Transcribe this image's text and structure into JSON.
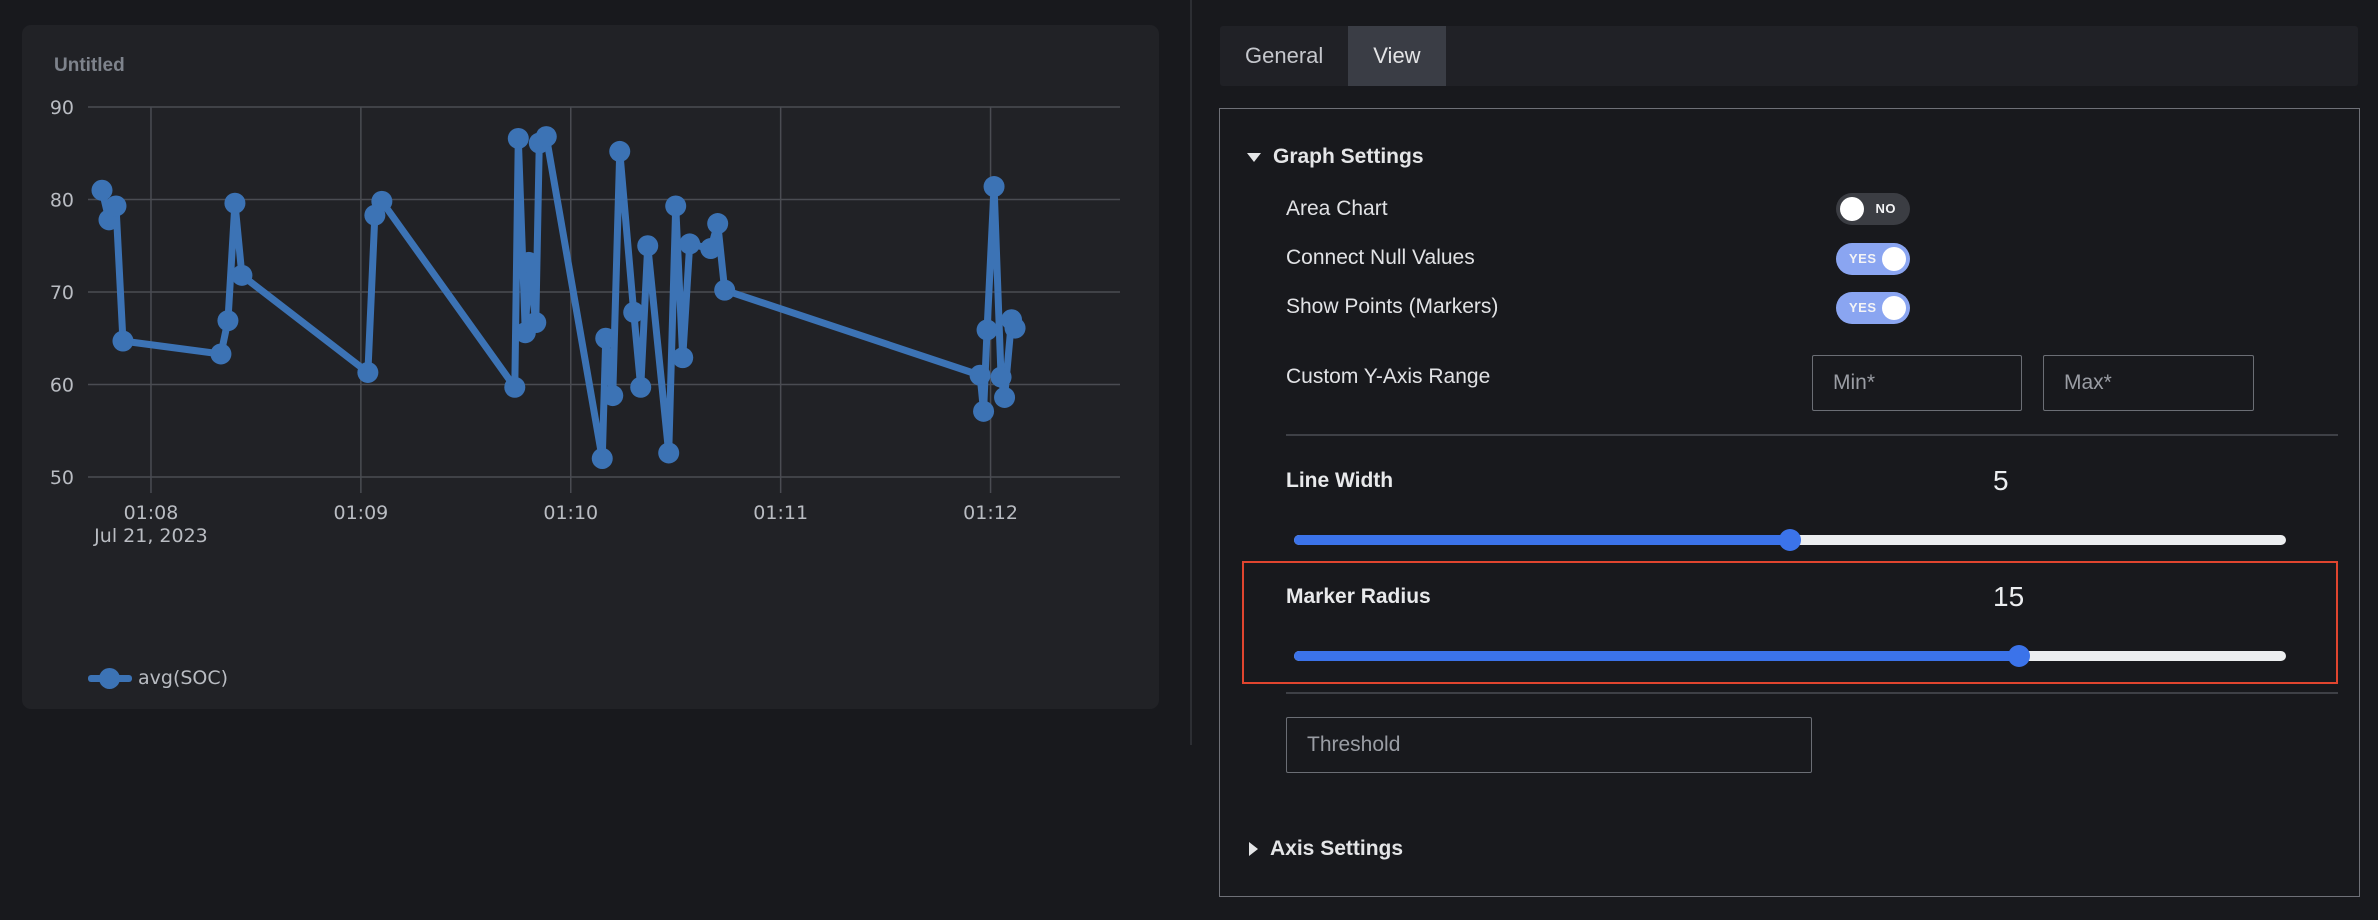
{
  "panel": {
    "title": "Untitled",
    "legend_label": "avg(SOC)"
  },
  "chart_data": {
    "type": "line",
    "title": "Untitled",
    "series": [
      {
        "name": "avg(SOC)",
        "color": "#3c73b5",
        "points": [
          [
            "01:07:46",
            81
          ],
          [
            "01:07:48",
            77.8
          ],
          [
            "01:07:50",
            79.3
          ],
          [
            "01:07:52",
            64.7
          ],
          [
            "01:08:20",
            63.3
          ],
          [
            "01:08:22",
            66.9
          ],
          [
            "01:08:24",
            79.6
          ],
          [
            "01:08:26",
            71.8
          ],
          [
            "01:09:02",
            61.3
          ],
          [
            "01:09:04",
            78.3
          ],
          [
            "01:09:06",
            79.8
          ],
          [
            "01:09:44",
            59.7
          ],
          [
            "01:09:45",
            86.6
          ],
          [
            "01:09:47",
            65.6
          ],
          [
            "01:09:48",
            73.2
          ],
          [
            "01:09:50",
            66.7
          ],
          [
            "01:09:51",
            86.1
          ],
          [
            "01:09:53",
            86.8
          ],
          [
            "01:10:09",
            52
          ],
          [
            "01:10:10",
            65
          ],
          [
            "01:10:12",
            58.8
          ],
          [
            "01:10:14",
            85.2
          ],
          [
            "01:10:18",
            67.8
          ],
          [
            "01:10:20",
            59.7
          ],
          [
            "01:10:22",
            75
          ],
          [
            "01:10:28",
            52.6
          ],
          [
            "01:10:30",
            79.3
          ],
          [
            "01:10:32",
            62.9
          ],
          [
            "01:10:34",
            75.2
          ],
          [
            "01:10:40",
            74.7
          ],
          [
            "01:10:42",
            77.4
          ],
          [
            "01:10:44",
            70.2
          ],
          [
            "01:11:57",
            61
          ],
          [
            "01:11:58",
            57.1
          ],
          [
            "01:11:59",
            65.9
          ],
          [
            "01:12:01",
            81.4
          ],
          [
            "01:12:03",
            60.8
          ],
          [
            "01:12:04",
            58.6
          ],
          [
            "01:12:06",
            67
          ],
          [
            "01:12:07",
            66.1
          ]
        ]
      }
    ],
    "x_ticks": [
      "01:08",
      "01:09",
      "01:10",
      "01:11",
      "01:12"
    ],
    "x_date_label": "Jul 21, 2023",
    "y_ticks": [
      90,
      80,
      70,
      60,
      50
    ],
    "ylim": [
      50,
      90
    ],
    "grid": true,
    "legend": "bottom-left"
  },
  "tabs": [
    {
      "label": "General",
      "active": false
    },
    {
      "label": "View",
      "active": true
    }
  ],
  "graph_settings": {
    "header": "Graph Settings",
    "area_chart": {
      "label": "Area Chart",
      "state": "NO"
    },
    "connect_null": {
      "label": "Connect Null Values",
      "state": "YES"
    },
    "show_points": {
      "label": "Show Points (Markers)",
      "state": "YES"
    },
    "y_range": {
      "label": "Custom Y-Axis Range",
      "min_placeholder": "Min*",
      "max_placeholder": "Max*"
    },
    "line_width": {
      "label": "Line Width",
      "value": "5",
      "fraction": 0.5
    },
    "marker_radius": {
      "label": "Marker Radius",
      "value": "15",
      "fraction": 0.731
    },
    "threshold_placeholder": "Threshold"
  },
  "axis_settings": {
    "header": "Axis Settings"
  },
  "colors": {
    "accent": "#3b73ea",
    "series": "#3c73b5",
    "highlight": "#e0452f"
  }
}
